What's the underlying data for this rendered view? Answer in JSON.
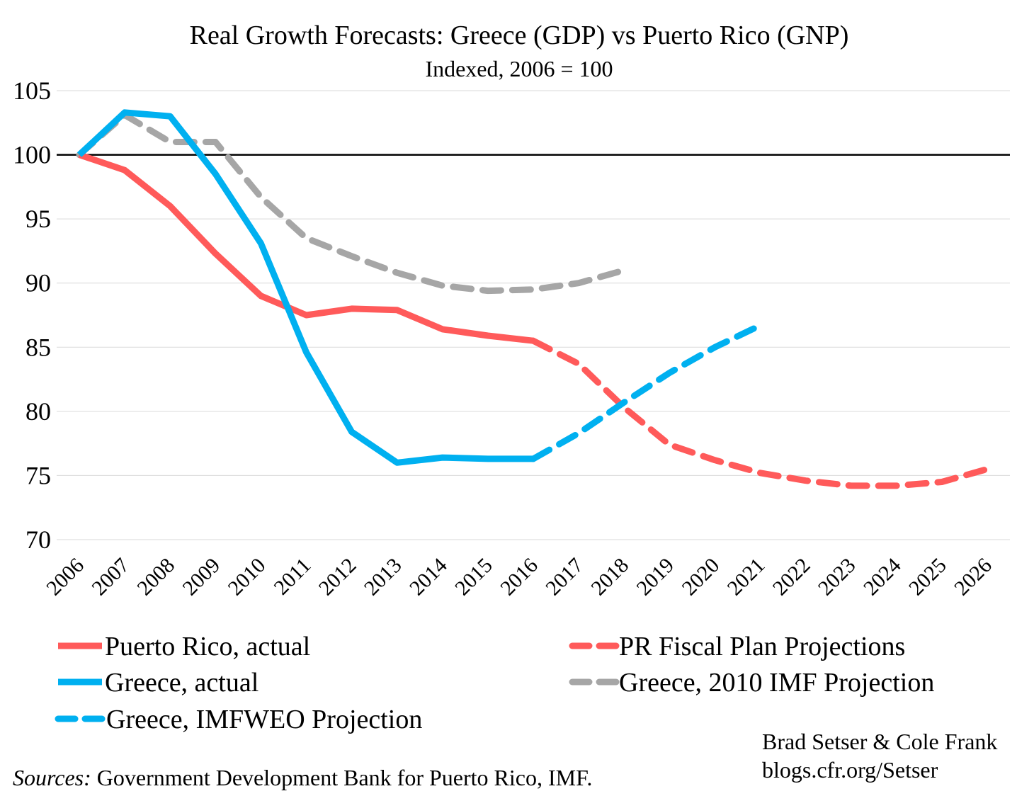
{
  "chart_data": {
    "type": "line",
    "title": "Real Growth Forecasts: Greece (GDP) vs Puerto Rico (GNP)",
    "subtitle": "Indexed, 2006 = 100",
    "ylim": [
      70,
      105
    ],
    "yticks": [
      70,
      75,
      80,
      85,
      90,
      95,
      100,
      105
    ],
    "reference_line": 100,
    "grid": true,
    "legend_placement": "bottom",
    "x": [
      "2006",
      "2007",
      "2008",
      "2009",
      "2010",
      "2011",
      "2012",
      "2013",
      "2014",
      "2015",
      "2016",
      "2017",
      "2018",
      "2019",
      "2020",
      "2021",
      "2022",
      "2023",
      "2024",
      "2025",
      "2026"
    ],
    "series": [
      {
        "name": "Puerto Rico, actual",
        "color": "#ff5a5a",
        "style": "solid",
        "x": [
          "2006",
          "2007",
          "2008",
          "2009",
          "2010",
          "2011",
          "2012",
          "2013",
          "2014",
          "2015",
          "2016"
        ],
        "values": [
          100,
          98.8,
          96.0,
          92.3,
          89.0,
          87.5,
          88.0,
          87.9,
          86.4,
          85.9,
          85.5
        ]
      },
      {
        "name": "PR Fiscal Plan Projections",
        "color": "#ff5a5a",
        "style": "dashed",
        "x": [
          "2016",
          "2017",
          "2018",
          "2019",
          "2020",
          "2021",
          "2022",
          "2023",
          "2024",
          "2025",
          "2026"
        ],
        "values": [
          85.5,
          83.7,
          80.3,
          77.4,
          76.2,
          75.2,
          74.6,
          74.2,
          74.2,
          74.5,
          75.5
        ]
      },
      {
        "name": "Greece, actual",
        "color": "#00b0f0",
        "style": "solid",
        "x": [
          "2006",
          "2007",
          "2008",
          "2009",
          "2010",
          "2011",
          "2012",
          "2013",
          "2014",
          "2015",
          "2016"
        ],
        "values": [
          100,
          103.3,
          103.0,
          98.5,
          93.1,
          84.6,
          78.4,
          76.0,
          76.4,
          76.3,
          76.3
        ]
      },
      {
        "name": "Greece, 2010 IMF Projection",
        "color": "#a6a6a6",
        "style": "dashed",
        "x": [
          "2006",
          "2007",
          "2008",
          "2009",
          "2010",
          "2011",
          "2012",
          "2013",
          "2014",
          "2015",
          "2016",
          "2017",
          "2018"
        ],
        "values": [
          100,
          103.1,
          101.0,
          101.0,
          96.7,
          93.5,
          92.1,
          90.8,
          89.8,
          89.4,
          89.5,
          90.0,
          91.0
        ]
      },
      {
        "name": "Greece, IMFWEO Projection",
        "color": "#00b0f0",
        "style": "dashed",
        "x": [
          "2016",
          "2017",
          "2018",
          "2019",
          "2020",
          "2021"
        ],
        "values": [
          76.3,
          78.3,
          80.7,
          83.0,
          85.0,
          86.7
        ]
      }
    ]
  },
  "credits": {
    "author": "Brad Setser & Cole Frank",
    "url": "blogs.cfr.org/Setser"
  },
  "sources": {
    "label": "Sources:",
    "text": " Government Development Bank for Puerto Rico, IMF."
  }
}
